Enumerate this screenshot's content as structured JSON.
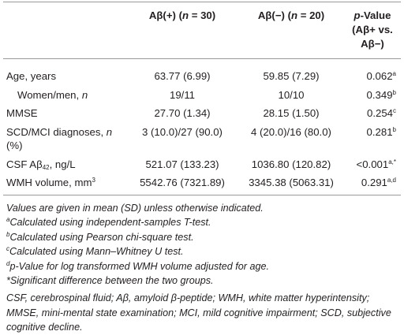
{
  "table": {
    "header": [
      [
        "Aβ(+) (",
        {
          "i": "n"
        },
        " = 30)"
      ],
      [
        "Aβ(−) (",
        {
          "i": "n"
        },
        " = 20)"
      ],
      [
        [
          {
            "i": "p"
          },
          "-Value"
        ],
        [
          "(Aβ+ vs. Aβ−)"
        ]
      ]
    ],
    "rows": [
      {
        "label": [
          "Age, years"
        ],
        "cells": [
          [
            "63.77 (6.99)"
          ],
          [
            "59.85 (7.29)"
          ],
          [
            "0.062",
            {
              "sup": "a"
            }
          ]
        ]
      },
      {
        "label": [
          "Women/men, ",
          {
            "i": "n"
          }
        ],
        "indent": 1,
        "cells": [
          [
            "19/11"
          ],
          [
            "10/10"
          ],
          [
            "0.349",
            {
              "sup": "b"
            }
          ]
        ]
      },
      {
        "label": [
          "MMSE"
        ],
        "cells": [
          [
            "27.70 (1.34)"
          ],
          [
            "28.15 (1.50)"
          ],
          [
            "0.254",
            {
              "sup": "c"
            }
          ]
        ]
      },
      {
        "label": [
          "SCD/MCI diagnoses, ",
          {
            "i": "n"
          },
          " (%)"
        ],
        "cells": [
          [
            "3 (10.0)/27 (90.0)"
          ],
          [
            "4 (20.0)/16 (80.0)"
          ],
          [
            "0.281",
            {
              "sup": "b"
            }
          ]
        ]
      },
      {
        "label": [
          "CSF Aβ",
          {
            "sub": "42"
          },
          ", ng/L"
        ],
        "cells": [
          [
            "521.07 (133.23)"
          ],
          [
            "1036.80 (120.82)"
          ],
          [
            "<0.001",
            {
              "sup": "a,*"
            }
          ]
        ]
      },
      {
        "label": [
          "WMH volume, mm",
          {
            "sup": "3"
          }
        ],
        "cells": [
          [
            "5542.76 (7321.89)"
          ],
          [
            "3345.38 (5063.31)"
          ],
          [
            "0.291",
            {
              "sup": "a,d"
            }
          ]
        ]
      }
    ]
  },
  "footnotes": [
    [
      "Values are given in mean (SD) unless otherwise indicated."
    ],
    [
      {
        "sup": "a"
      },
      "Calculated using independent-samples T-test."
    ],
    [
      {
        "sup": "b"
      },
      "Calculated using Pearson chi-square test."
    ],
    [
      {
        "sup": "c"
      },
      "Calculated using Mann–Whitney U test."
    ],
    [
      {
        "sup": "d"
      },
      "p-Value for log transformed WMH volume adjusted for age."
    ],
    [
      "*Significant difference between the two groups."
    ],
    [
      "CSF, cerebrospinal fluid; Aβ, amyloid β-peptide; WMH, white matter hyperintensity; MMSE, mini-mental state examination; MCI, mild cognitive impairment; SCD, subjective cognitive decline."
    ]
  ]
}
